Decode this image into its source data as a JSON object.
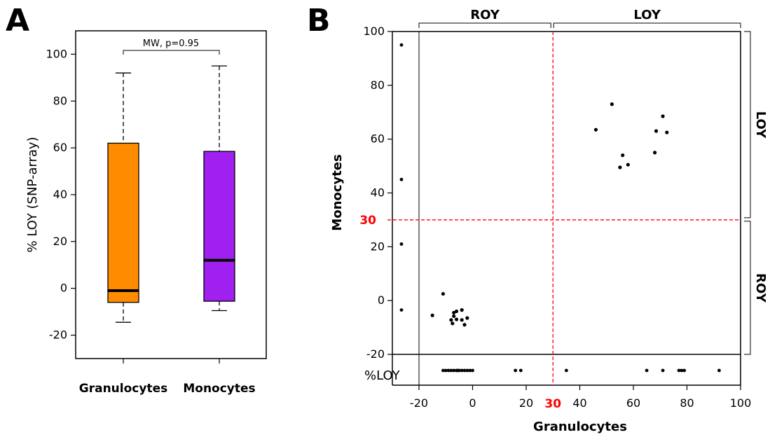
{
  "panels": {
    "a_label": "A",
    "b_label": "B"
  },
  "chart_data": [
    {
      "type": "box",
      "panel": "A",
      "ylabel": "% LOY (SNP-array)",
      "ylim": [
        -30,
        110
      ],
      "yticks": [
        -20,
        0,
        20,
        40,
        60,
        80,
        100
      ],
      "annotation": "MW, p=0.95",
      "categories": [
        "Granulocytes",
        "Monocytes"
      ],
      "boxes": [
        {
          "category": "Granulocytes",
          "whisker_low": -14.5,
          "q1": -6.0,
          "median": -1.0,
          "q3": 62.0,
          "whisker_high": 92.0,
          "color": "#FF8C00"
        },
        {
          "category": "Monocytes",
          "whisker_low": -9.5,
          "q1": -5.5,
          "median": 12.0,
          "q3": 58.5,
          "whisker_high": 95.0,
          "color": "#A020F0"
        }
      ]
    },
    {
      "type": "scatter",
      "panel": "B",
      "xlabel": "Granulocytes",
      "ylabel": "Monocytes",
      "xlim": [
        -20,
        100
      ],
      "ylim": [
        -20,
        100
      ],
      "xticks": [
        -20,
        0,
        20,
        40,
        60,
        80,
        100
      ],
      "yticks": [
        -20,
        0,
        20,
        40,
        60,
        80,
        100
      ],
      "threshold": 30,
      "threshold_label": "30",
      "threshold_color": "#FF0000",
      "top_brackets": [
        "ROY",
        "LOY"
      ],
      "right_brackets": [
        "LOY",
        "ROY"
      ],
      "margin_label": "%LOY",
      "points": [
        {
          "x": -11,
          "y": 2.5
        },
        {
          "x": -15,
          "y": -5.5
        },
        {
          "x": -7,
          "y": -4.5
        },
        {
          "x": -6,
          "y": -4
        },
        {
          "x": -4,
          "y": -3.5
        },
        {
          "x": -7,
          "y": -5.8
        },
        {
          "x": -6,
          "y": -7
        },
        {
          "x": -8,
          "y": -7.2
        },
        {
          "x": -4,
          "y": -7.2
        },
        {
          "x": -2,
          "y": -6.5
        },
        {
          "x": -7.5,
          "y": -8.5
        },
        {
          "x": -3,
          "y": -9
        },
        {
          "x": 46,
          "y": 63.5
        },
        {
          "x": 52,
          "y": 73
        },
        {
          "x": 56,
          "y": 54
        },
        {
          "x": 55,
          "y": 49.5
        },
        {
          "x": 58,
          "y": 50.5
        },
        {
          "x": 68,
          "y": 55
        },
        {
          "x": 68.5,
          "y": 63
        },
        {
          "x": 71,
          "y": 68.5
        },
        {
          "x": 72.5,
          "y": 62.5
        }
      ],
      "y_margin_points": [
        95,
        45,
        21,
        -3.5
      ],
      "x_margin_points": [
        -11,
        -10,
        -9,
        -8,
        -7,
        -6,
        -5.5,
        -5,
        -4,
        -3,
        -2,
        -1,
        0,
        16,
        18,
        35,
        65,
        71,
        77,
        78,
        79,
        92
      ]
    }
  ]
}
